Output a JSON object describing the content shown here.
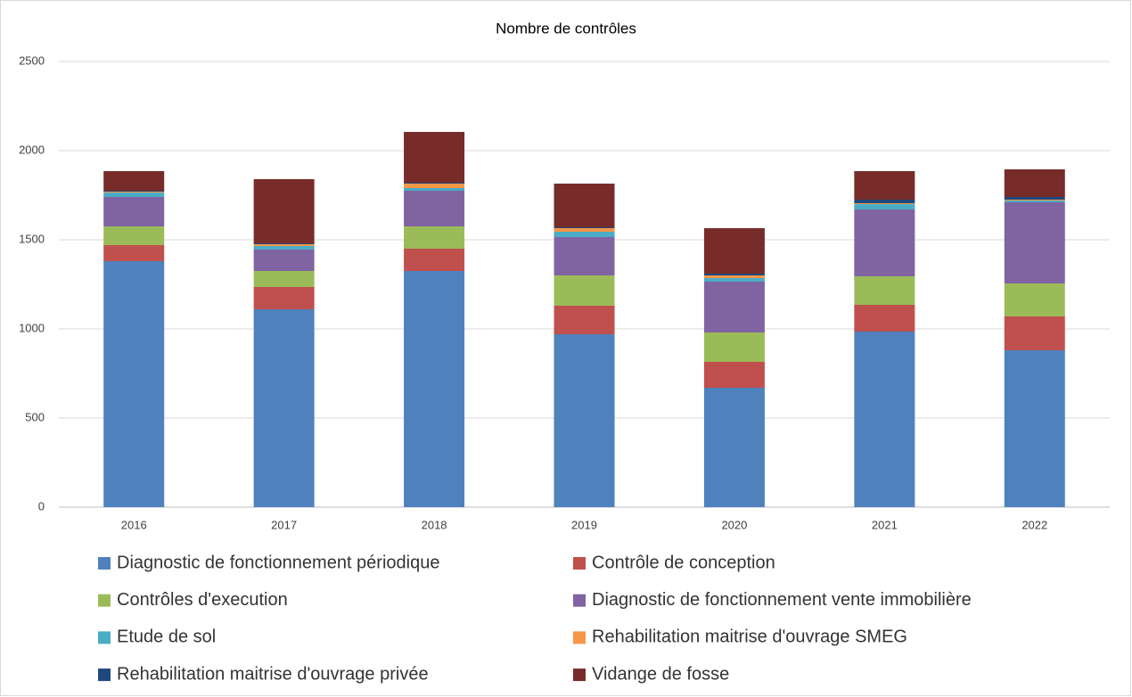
{
  "chart_data": {
    "type": "stacked_bar",
    "title": "Nombre de contrôles",
    "categories": [
      "2016",
      "2017",
      "2018",
      "2019",
      "2020",
      "2021",
      "2022"
    ],
    "series": [
      {
        "name": "Diagnostic de fonctionnement périodique",
        "color": "#4f81bd",
        "values": [
          1380,
          1110,
          1325,
          970,
          670,
          985,
          880
        ]
      },
      {
        "name": "Contrôle de conception",
        "color": "#c0504d",
        "values": [
          90,
          125,
          125,
          160,
          145,
          150,
          190
        ]
      },
      {
        "name": "Contrôles d'execution",
        "color": "#9bbb59",
        "values": [
          105,
          90,
          125,
          170,
          165,
          160,
          185
        ]
      },
      {
        "name": "Diagnostic de fonctionnement vente immobilière",
        "color": "#8064a2",
        "values": [
          165,
          120,
          200,
          215,
          285,
          375,
          455
        ]
      },
      {
        "name": "Etude de sol",
        "color": "#4bacc6",
        "values": [
          25,
          20,
          15,
          30,
          20,
          30,
          10
        ]
      },
      {
        "name": "Rehabilitation maitrise d'ouvrage SMEG",
        "color": "#f79646",
        "values": [
          5,
          10,
          25,
          20,
          15,
          5,
          5
        ]
      },
      {
        "name": "Rehabilitation maitrise d'ouvrage privée",
        "color": "#1f497d",
        "values": [
          5,
          5,
          5,
          5,
          10,
          20,
          15
        ]
      },
      {
        "name": "Vidange de fosse",
        "color": "#772c2a",
        "values": [
          110,
          360,
          285,
          245,
          255,
          160,
          155
        ]
      }
    ],
    "ylim": [
      0,
      2500
    ],
    "yticks": [
      0,
      500,
      1000,
      1500,
      2000,
      2500
    ],
    "grid": true
  }
}
